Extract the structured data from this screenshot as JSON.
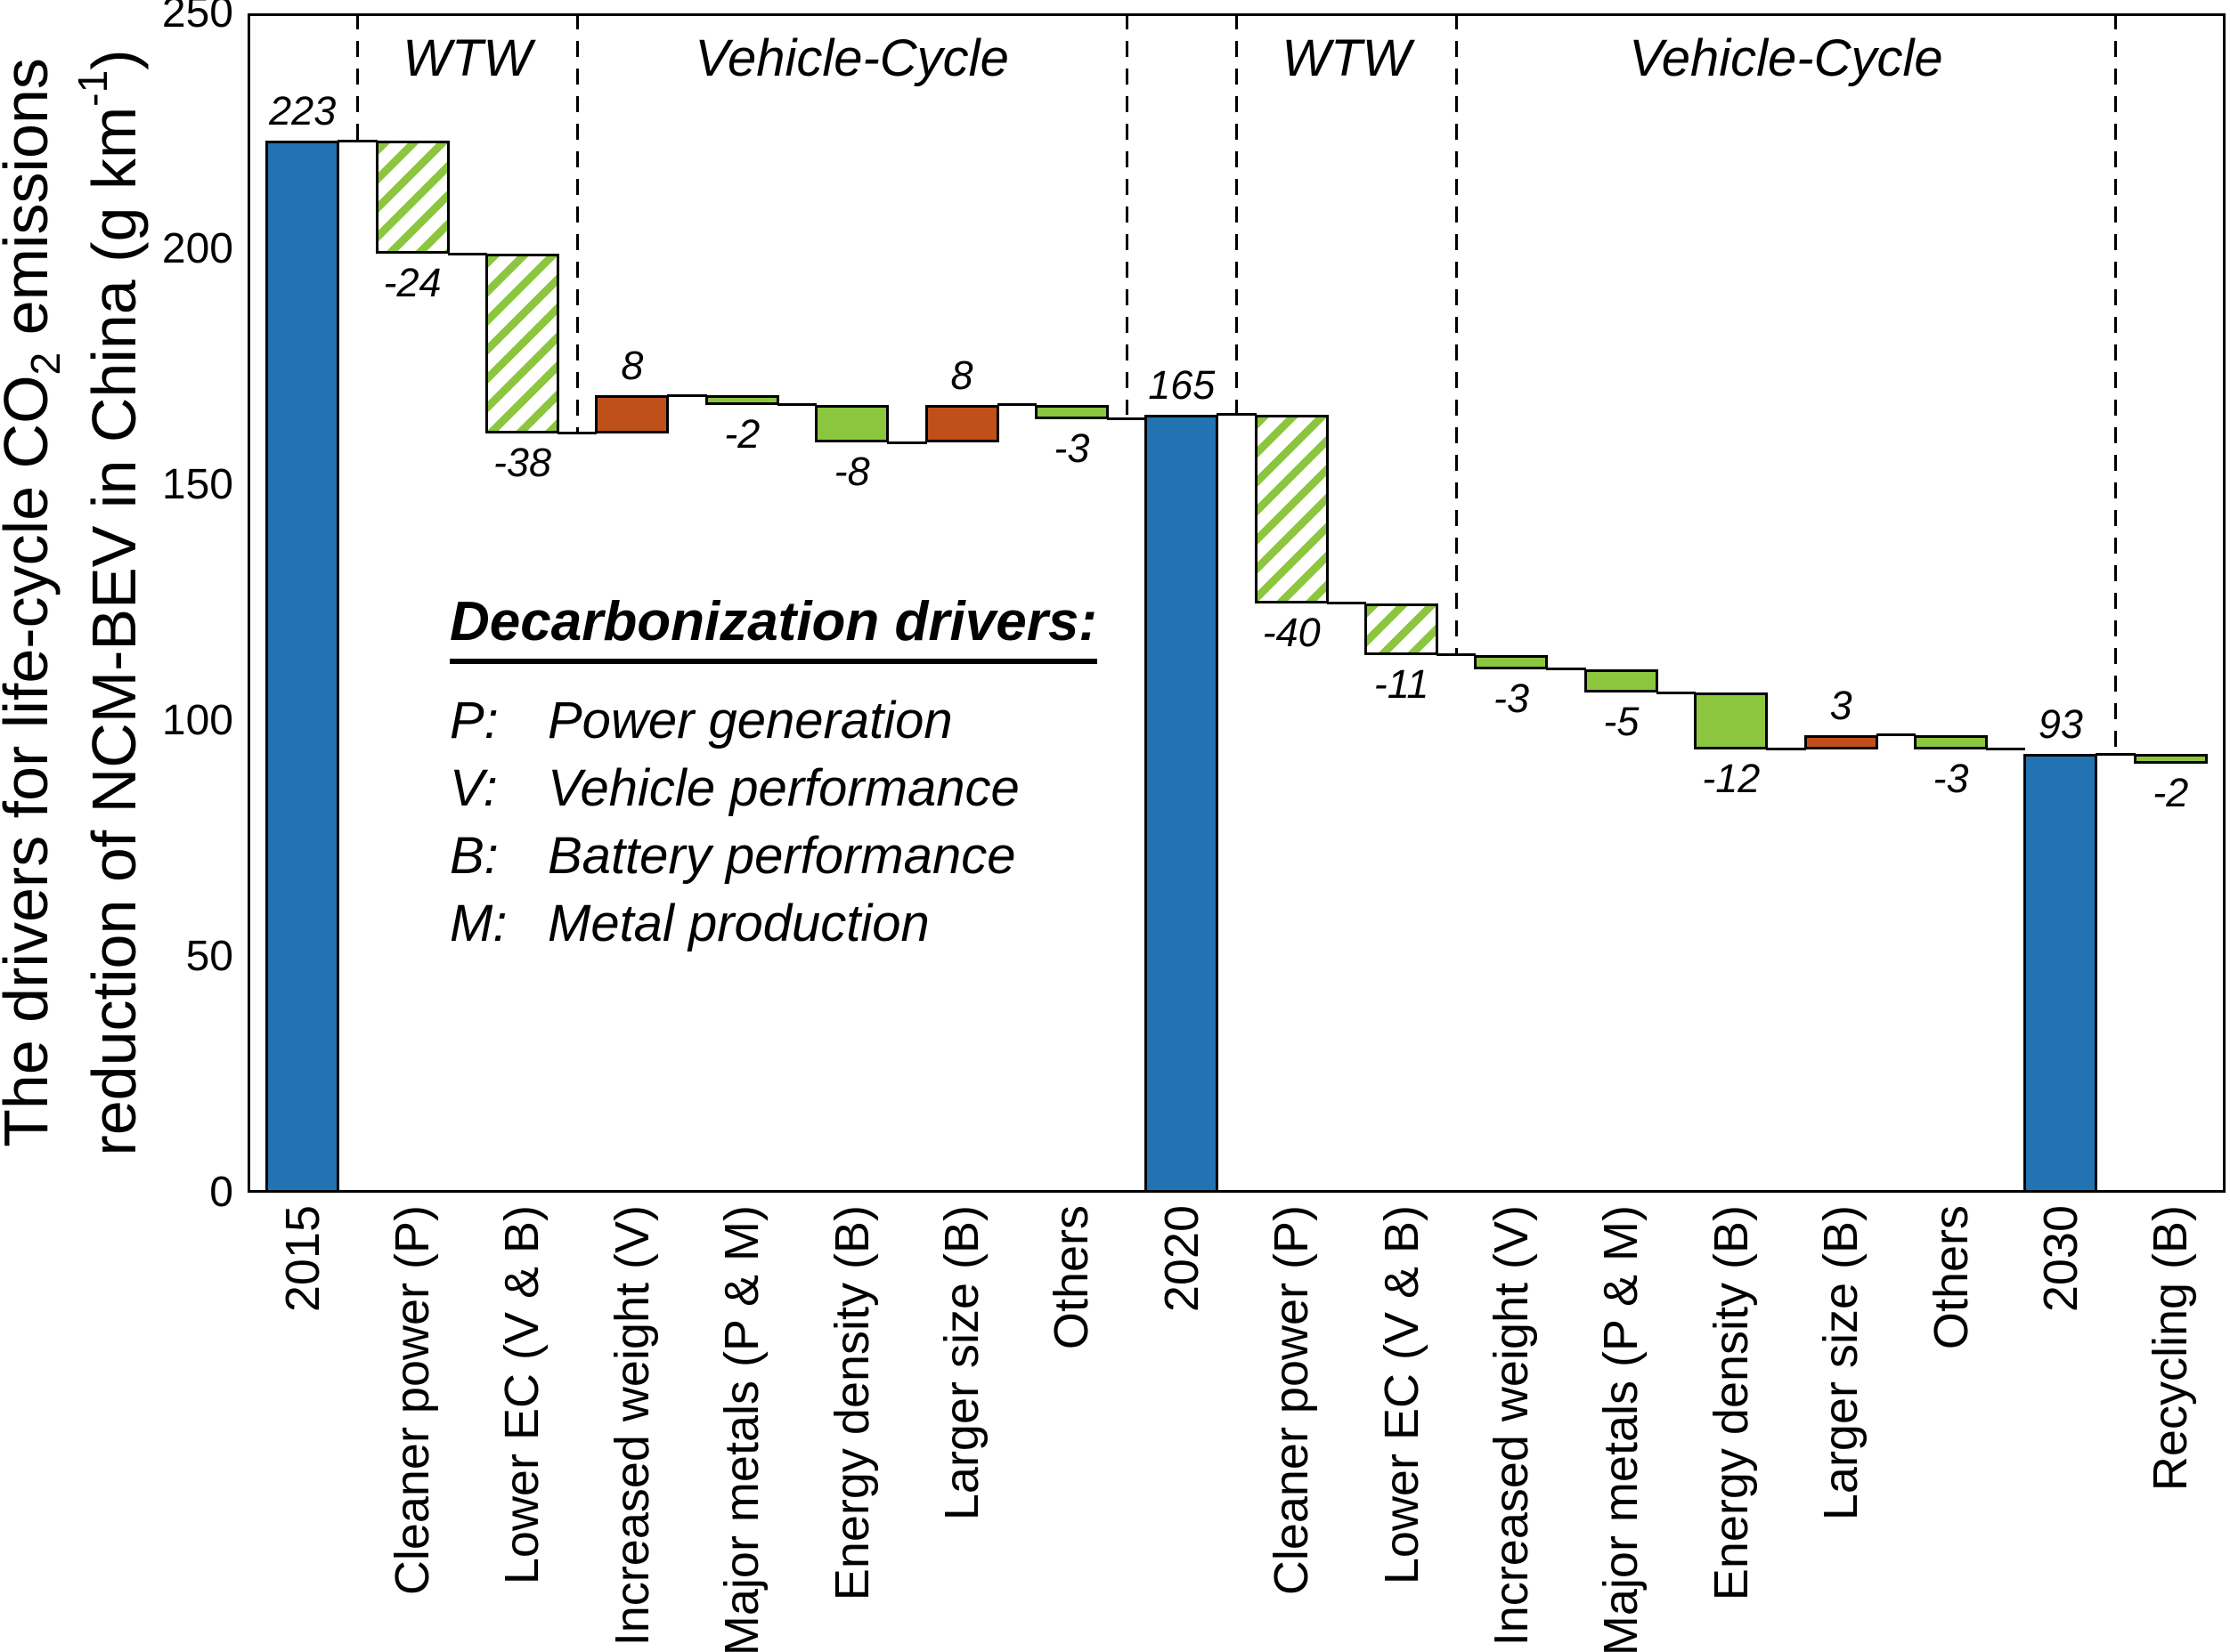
{
  "figure": {
    "background": "#ffffff"
  },
  "y_axis": {
    "label_line1": {
      "pre": "The drivers for life-cycle CO",
      "sub": "2",
      "post": " emissions"
    },
    "label_line2": {
      "pre": "reduction of NCM-BEV in China (g km",
      "sup": "-1",
      "post": ")"
    },
    "tick_labels": [
      "0",
      "50",
      "100",
      "150",
      "200",
      "250"
    ]
  },
  "legend": {
    "title": "Decarbonization drivers:",
    "items": [
      {
        "key": "P:",
        "label": "Power generation"
      },
      {
        "key": "V:",
        "label": "Vehicle performance"
      },
      {
        "key": "B:",
        "label": "Battery performance"
      },
      {
        "key": "M:",
        "label": "Metal production"
      }
    ]
  },
  "chart_data": {
    "type": "bar",
    "subtype": "waterfall",
    "ylabel": "The drivers for life-cycle CO2 emissions reduction of NCM-BEV in China (g km-1)",
    "ylim": [
      0,
      250
    ],
    "yticks": [
      0,
      50,
      100,
      150,
      200,
      250
    ],
    "grid": false,
    "categories": [
      "2015",
      "Cleaner power (P)",
      "Lower EC (V & B)",
      "Increased weight (V)",
      "Major metals (P & M)",
      "Energy density (B)",
      "Larger size (B)",
      "Others",
      "2020",
      "Cleaner power (P)",
      "Lower EC (V & B)",
      "Increased weight (V)",
      "Major metals (P & M)",
      "Energy density (B)",
      "Larger size (B)",
      "Others",
      "2030",
      "Recycling (B)"
    ],
    "bars": [
      {
        "category": "2015",
        "from": 0,
        "to": 223,
        "kind": "total",
        "value_label": "223",
        "label_side": "above"
      },
      {
        "category": "Cleaner power (P)",
        "from": 223,
        "to": 199,
        "kind": "decrease_hatch",
        "value_label": "-24",
        "label_side": "below"
      },
      {
        "category": "Lower EC (V & B)",
        "from": 199,
        "to": 161,
        "kind": "decrease_hatch",
        "value_label": "-38",
        "label_side": "below"
      },
      {
        "category": "Increased weight (V)",
        "from": 161,
        "to": 169,
        "kind": "increase",
        "value_label": "8",
        "label_side": "above"
      },
      {
        "category": "Major metals (P & M)",
        "from": 169,
        "to": 167,
        "kind": "decrease",
        "value_label": "-2",
        "label_side": "below"
      },
      {
        "category": "Energy density (B)",
        "from": 167,
        "to": 159,
        "kind": "decrease",
        "value_label": "-8",
        "label_side": "below"
      },
      {
        "category": "Larger size (B)",
        "from": 159,
        "to": 167,
        "kind": "increase",
        "value_label": "8",
        "label_side": "above"
      },
      {
        "category": "Others",
        "from": 167,
        "to": 164,
        "kind": "decrease",
        "value_label": "-3",
        "label_side": "below"
      },
      {
        "category": "2020",
        "from": 0,
        "to": 165,
        "kind": "total",
        "value_label": "165",
        "label_side": "above"
      },
      {
        "category": "Cleaner power (P)",
        "from": 165,
        "to": 125,
        "kind": "decrease_hatch",
        "value_label": "-40",
        "label_side": "below"
      },
      {
        "category": "Lower EC (V & B)",
        "from": 125,
        "to": 114,
        "kind": "decrease_hatch",
        "value_label": "-11",
        "label_side": "below"
      },
      {
        "category": "Increased weight (V)",
        "from": 114,
        "to": 111,
        "kind": "decrease",
        "value_label": "-3",
        "label_side": "below"
      },
      {
        "category": "Major metals (P & M)",
        "from": 111,
        "to": 106,
        "kind": "decrease",
        "value_label": "-5",
        "label_side": "below"
      },
      {
        "category": "Energy density (B)",
        "from": 106,
        "to": 94,
        "kind": "decrease",
        "value_label": "-12",
        "label_side": "below"
      },
      {
        "category": "Larger size (B)",
        "from": 94,
        "to": 97,
        "kind": "increase",
        "value_label": "3",
        "label_side": "above"
      },
      {
        "category": "Others",
        "from": 97,
        "to": 94,
        "kind": "decrease",
        "value_label": "-3",
        "label_side": "below"
      },
      {
        "category": "2030",
        "from": 0,
        "to": 93,
        "kind": "total",
        "value_label": "93",
        "label_side": "above"
      },
      {
        "category": "Recycling (B)",
        "from": 93,
        "to": 91,
        "kind": "decrease",
        "value_label": "-2",
        "label_side": "below"
      }
    ],
    "separators": [
      {
        "after_slot": 1,
        "drop_to": 223
      },
      {
        "after_slot": 3,
        "drop_to": 161
      },
      {
        "after_slot": 8,
        "drop_to": 165
      },
      {
        "after_slot": 9,
        "drop_to": 165
      },
      {
        "after_slot": 11,
        "drop_to": 114
      },
      {
        "after_slot": 17,
        "drop_to": 93
      }
    ],
    "sections": [
      {
        "label": "WTW",
        "left_boundary_slot": 1,
        "right_boundary_slot": 3
      },
      {
        "label": "Vehicle-Cycle",
        "left_boundary_slot": 3,
        "right_boundary_slot": 8
      },
      {
        "label": "WTW",
        "left_boundary_slot": 9,
        "right_boundary_slot": 11
      },
      {
        "label": "Vehicle-Cycle",
        "left_boundary_slot": 11,
        "right_boundary_slot": 17
      }
    ],
    "legend_position": "inside-left-middle",
    "colors": {
      "total": "#2173b2",
      "increase": "#c05019",
      "decrease": "#8cc63e",
      "hatch_bg": "#ffffff",
      "outline": "#000000"
    }
  }
}
